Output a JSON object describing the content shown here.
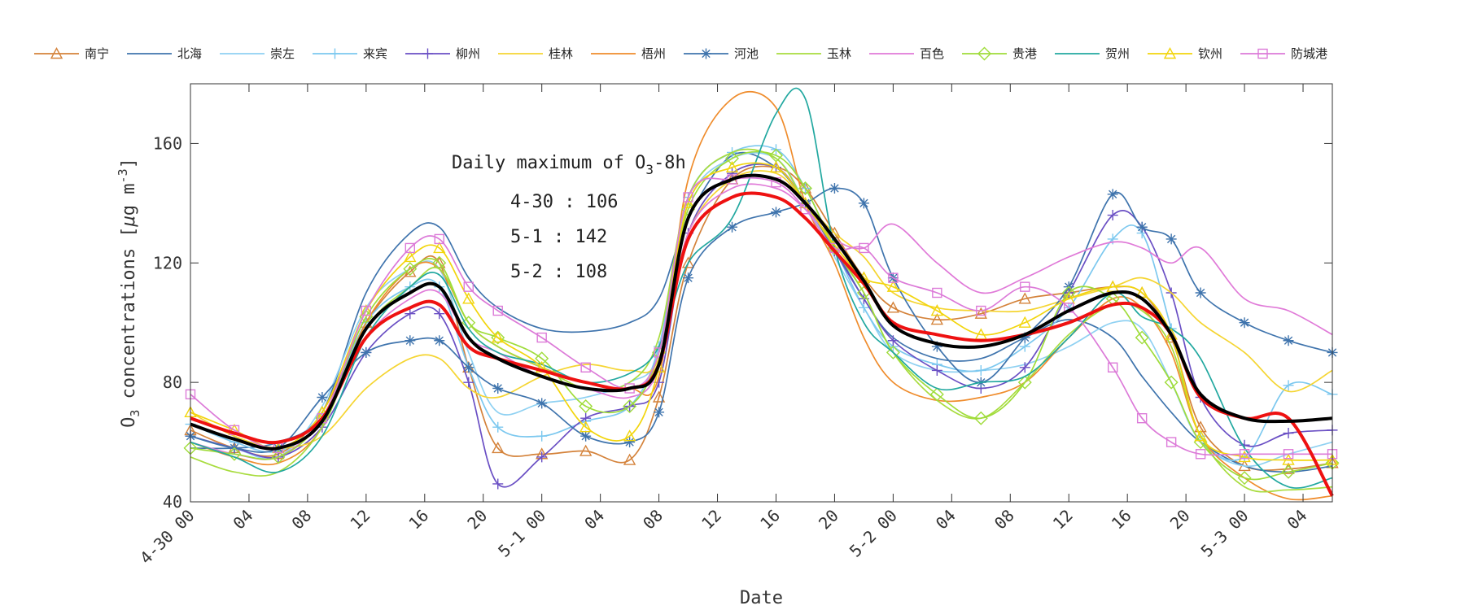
{
  "chart_data": {
    "type": "line",
    "title": "",
    "xlabel": "Date",
    "ylabel": "O3 concentrations [μg m-3]",
    "ylabel_parts": {
      "pre": "O",
      "sub": "3",
      "mid": " concentrations [",
      "mu": "μ",
      "g": "g m",
      "sup": "-3",
      "end": "]"
    },
    "xlim": [
      0,
      78
    ],
    "ylim": [
      40,
      180
    ],
    "yticks": [
      40,
      80,
      120,
      160
    ],
    "x_ticks": [
      {
        "x": 0,
        "label": "4-30 00"
      },
      {
        "x": 4,
        "label": "04"
      },
      {
        "x": 8,
        "label": "08"
      },
      {
        "x": 12,
        "label": "12"
      },
      {
        "x": 16,
        "label": "16"
      },
      {
        "x": 20,
        "label": "20"
      },
      {
        "x": 24,
        "label": "5-1 00"
      },
      {
        "x": 28,
        "label": "04"
      },
      {
        "x": 32,
        "label": "08"
      },
      {
        "x": 36,
        "label": "12"
      },
      {
        "x": 40,
        "label": "16"
      },
      {
        "x": 44,
        "label": "20"
      },
      {
        "x": 48,
        "label": "5-2 00"
      },
      {
        "x": 52,
        "label": "04"
      },
      {
        "x": 56,
        "label": "08"
      },
      {
        "x": 60,
        "label": "12"
      },
      {
        "x": 64,
        "label": "16"
      },
      {
        "x": 68,
        "label": "20"
      },
      {
        "x": 72,
        "label": "5-3 00"
      },
      {
        "x": 76,
        "label": "04"
      }
    ],
    "grid": false,
    "legend_position": "top",
    "annotation": {
      "title_pre": "Daily maximum of O",
      "title_sub": "3",
      "title_post": "-8h",
      "lines": [
        "4-30 : 106",
        "5-1 : 142",
        "5-2 : 108"
      ]
    },
    "keypoints_x": [
      0,
      3,
      6,
      9,
      12,
      15,
      17,
      19,
      21,
      24,
      27,
      30,
      32,
      34,
      37,
      40,
      42,
      44,
      46,
      48,
      51,
      54,
      57,
      60,
      63,
      65,
      67,
      69,
      72,
      75,
      78
    ],
    "series": [
      {
        "name": "南宁",
        "color": "#d4823a",
        "marker": "triangle",
        "values": [
          64,
          58,
          56,
          70,
          100,
          117,
          120,
          85,
          58,
          56,
          57,
          54,
          75,
          120,
          148,
          152,
          145,
          130,
          115,
          105,
          101,
          103,
          108,
          110,
          112,
          110,
          95,
          65,
          52,
          51,
          53
        ]
      },
      {
        "name": "北海",
        "color": "#3f74ad",
        "marker": "none",
        "values": [
          58,
          58,
          60,
          70,
          110,
          130,
          132,
          115,
          105,
          98,
          97,
          100,
          108,
          135,
          156,
          152,
          140,
          125,
          108,
          95,
          88,
          88,
          95,
          101,
          95,
          82,
          70,
          60,
          52,
          50,
          52
        ]
      },
      {
        "name": "崇左",
        "color": "#8fd1f2",
        "marker": "none",
        "values": [
          62,
          58,
          55,
          72,
          105,
          118,
          118,
          90,
          70,
          73,
          75,
          80,
          90,
          140,
          155,
          155,
          140,
          122,
          105,
          90,
          84,
          84,
          86,
          92,
          100,
          98,
          80,
          60,
          52,
          56,
          60
        ]
      },
      {
        "name": "来宾",
        "color": "#7cc8ef",
        "marker": "plus",
        "values": [
          66,
          60,
          57,
          68,
          100,
          112,
          112,
          85,
          65,
          62,
          67,
          72,
          92,
          142,
          157,
          158,
          145,
          125,
          105,
          92,
          86,
          84,
          92,
          105,
          128,
          130,
          98,
          62,
          55,
          79,
          76
        ]
      },
      {
        "name": "柳州",
        "color": "#6a4fc4",
        "marker": "plus",
        "values": [
          62,
          58,
          55,
          65,
          90,
          103,
          103,
          80,
          46,
          55,
          68,
          72,
          80,
          130,
          150,
          152,
          140,
          124,
          108,
          94,
          84,
          78,
          85,
          110,
          136,
          132,
          110,
          75,
          59,
          63,
          64
        ]
      },
      {
        "name": "桂林",
        "color": "#f5d532",
        "marker": "none",
        "values": [
          70,
          62,
          58,
          62,
          78,
          88,
          88,
          78,
          75,
          82,
          86,
          84,
          88,
          130,
          148,
          150,
          140,
          130,
          122,
          110,
          105,
          104,
          104,
          108,
          112,
          115,
          110,
          100,
          90,
          77,
          84
        ]
      },
      {
        "name": "梧州",
        "color": "#ef8c2c",
        "marker": "none",
        "values": [
          60,
          55,
          53,
          65,
          100,
          118,
          118,
          100,
          92,
          85,
          80,
          78,
          82,
          148,
          175,
          172,
          140,
          120,
          95,
          80,
          74,
          75,
          80,
          95,
          108,
          105,
          90,
          62,
          48,
          41,
          42
        ]
      },
      {
        "name": "河池",
        "color": "#3f74ad",
        "marker": "asterisk",
        "values": [
          62,
          58,
          58,
          75,
          90,
          94,
          94,
          85,
          78,
          73,
          62,
          60,
          70,
          115,
          132,
          137,
          140,
          145,
          140,
          115,
          92,
          80,
          95,
          112,
          143,
          132,
          128,
          110,
          100,
          94,
          90
        ]
      },
      {
        "name": "玉林",
        "color": "#a8dc3e",
        "marker": "none",
        "values": [
          55,
          50,
          50,
          65,
          98,
          112,
          118,
          100,
          92,
          85,
          78,
          80,
          95,
          142,
          157,
          155,
          140,
          125,
          110,
          90,
          74,
          68,
          80,
          96,
          106,
          104,
          92,
          62,
          45,
          44,
          45
        ]
      },
      {
        "name": "百色",
        "color": "#e07ad8",
        "marker": "none",
        "values": [
          60,
          56,
          55,
          68,
          95,
          108,
          110,
          95,
          90,
          82,
          78,
          75,
          85,
          130,
          145,
          145,
          138,
          128,
          125,
          133,
          120,
          110,
          115,
          122,
          127,
          125,
          120,
          125,
          108,
          104,
          96
        ]
      },
      {
        "name": "贵港",
        "color": "#9fdc3a",
        "marker": "diamond",
        "values": [
          58,
          56,
          55,
          68,
          102,
          118,
          120,
          100,
          95,
          88,
          72,
          72,
          90,
          138,
          155,
          156,
          145,
          125,
          110,
          90,
          76,
          68,
          80,
          110,
          108,
          95,
          80,
          60,
          48,
          50,
          53
        ]
      },
      {
        "name": "贺州",
        "color": "#22a8a0",
        "marker": "none",
        "values": [
          60,
          55,
          50,
          62,
          95,
          112,
          116,
          98,
          90,
          86,
          80,
          83,
          92,
          120,
          135,
          170,
          175,
          125,
          100,
          90,
          78,
          80,
          82,
          95,
          110,
          102,
          98,
          88,
          58,
          45,
          48
        ]
      },
      {
        "name": "钦州",
        "color": "#f2d50c",
        "marker": "triangle",
        "values": [
          70,
          64,
          58,
          70,
          104,
          122,
          125,
          108,
          95,
          85,
          65,
          62,
          85,
          140,
          152,
          152,
          140,
          126,
          115,
          112,
          104,
          96,
          100,
          108,
          112,
          110,
          96,
          62,
          55,
          54,
          54
        ]
      },
      {
        "name": "防城港",
        "color": "#dc7ad8",
        "marker": "square",
        "values": [
          76,
          64,
          58,
          68,
          104,
          125,
          128,
          112,
          104,
          95,
          85,
          78,
          90,
          142,
          148,
          147,
          138,
          125,
          125,
          115,
          110,
          104,
          112,
          105,
          85,
          68,
          60,
          56,
          56,
          56,
          56
        ]
      },
      {
        "name": "",
        "color": "#ee1111",
        "marker": "none",
        "values": [
          68,
          63,
          60,
          68,
          95,
          105,
          106,
          92,
          88,
          84,
          80,
          78,
          86,
          128,
          142,
          142,
          135,
          124,
          113,
          100,
          96,
          94,
          96,
          100,
          106,
          105,
          96,
          75,
          68,
          68,
          42
        ]
      },
      {
        "name": "",
        "color": "#000000",
        "marker": "none",
        "values": [
          66,
          61,
          58,
          67,
          98,
          110,
          112,
          95,
          88,
          82,
          78,
          78,
          86,
          135,
          148,
          148,
          140,
          128,
          114,
          99,
          93,
          92,
          96,
          104,
          110,
          108,
          96,
          76,
          68,
          67,
          68
        ]
      }
    ]
  }
}
